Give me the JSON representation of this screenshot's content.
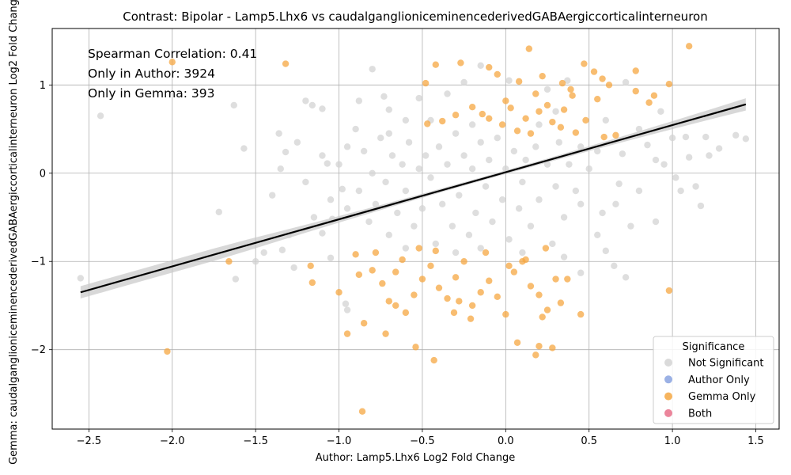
{
  "chart_data": {
    "type": "scatter",
    "title": "Contrast: Bipolar - Lamp5.Lhx6 vs caudalganglioniceminencederivedGABAergiccorticalinterneuron",
    "xlabel": "Author: Lamp5.Lhx6 Log2 Fold Change",
    "ylabel": "Gemma: caudalganglioniceminencederivedGABAergiccorticalinterneuron Log2 Fold Change",
    "xlim": [
      -2.72,
      1.64
    ],
    "ylim": [
      -2.9,
      1.64
    ],
    "x_ticks": [
      -2.5,
      -2.0,
      -1.5,
      -1.0,
      -0.5,
      0.0,
      0.5,
      1.0,
      1.5
    ],
    "x_tick_labels": [
      "−2.5",
      "−2.0",
      "−1.5",
      "−1.0",
      "−0.5",
      "0.0",
      "0.5",
      "1.0",
      "1.5"
    ],
    "y_ticks": [
      -2,
      -1,
      0,
      1
    ],
    "y_tick_labels": [
      "−2",
      "−1",
      "0",
      "1"
    ],
    "grid": true,
    "annotations": [
      "Spearman Correlation: 0.41",
      "Only in Author: 3924",
      "Only in Gemma: 393"
    ],
    "legend": {
      "title": "Significance",
      "placement": "lower-right",
      "entries": [
        {
          "name": "Not Significant",
          "color": "#d3d3d3"
        },
        {
          "name": "Author Only",
          "color": "#8aa3e0"
        },
        {
          "name": "Gemma Only",
          "color": "#f5a742"
        },
        {
          "name": "Both",
          "color": "#e8708a"
        }
      ]
    },
    "regression": {
      "x": [
        -2.55,
        1.44
      ],
      "y": [
        -1.35,
        0.78
      ],
      "color": "#000000"
    },
    "series": [
      {
        "name": "Gemma Only",
        "color": "#f5a742",
        "points": [
          [
            -2.0,
            1.26
          ],
          [
            -1.32,
            1.24
          ],
          [
            -0.42,
            1.23
          ],
          [
            -0.27,
            1.25
          ],
          [
            -0.1,
            1.2
          ],
          [
            0.14,
            1.41
          ],
          [
            0.47,
            1.24
          ],
          [
            1.1,
            1.44
          ],
          [
            0.78,
            1.16
          ],
          [
            0.53,
            1.15
          ],
          [
            0.58,
            1.07
          ],
          [
            0.98,
            1.01
          ],
          [
            0.34,
            1.02
          ],
          [
            0.62,
            1.0
          ],
          [
            -0.48,
            1.02
          ],
          [
            -0.05,
            1.12
          ],
          [
            0.22,
            1.1
          ],
          [
            0.08,
            1.04
          ],
          [
            0.39,
            0.95
          ],
          [
            0.55,
            0.84
          ],
          [
            0.86,
            0.8
          ],
          [
            0.89,
            0.88
          ],
          [
            0.78,
            0.93
          ],
          [
            -0.2,
            0.75
          ],
          [
            -0.14,
            0.67
          ],
          [
            -0.3,
            0.66
          ],
          [
            -0.47,
            0.56
          ],
          [
            -0.38,
            0.59
          ],
          [
            0.0,
            0.82
          ],
          [
            0.03,
            0.74
          ],
          [
            0.12,
            0.62
          ],
          [
            0.2,
            0.7
          ],
          [
            0.28,
            0.58
          ],
          [
            0.33,
            0.52
          ],
          [
            0.42,
            0.46
          ],
          [
            0.59,
            0.41
          ],
          [
            0.66,
            0.43
          ],
          [
            0.48,
            0.6
          ],
          [
            0.25,
            0.77
          ],
          [
            0.4,
            0.88
          ],
          [
            -0.02,
            0.55
          ],
          [
            0.07,
            0.48
          ],
          [
            0.15,
            0.45
          ],
          [
            -0.1,
            0.62
          ],
          [
            0.35,
            0.72
          ],
          [
            0.18,
            0.9
          ],
          [
            -2.03,
            -2.02
          ],
          [
            -0.86,
            -2.7
          ],
          [
            -0.43,
            -2.12
          ],
          [
            -1.66,
            -1.0
          ],
          [
            -1.17,
            -1.05
          ],
          [
            -1.16,
            -1.24
          ],
          [
            -1.0,
            -1.35
          ],
          [
            -0.95,
            -1.82
          ],
          [
            -0.85,
            -1.7
          ],
          [
            -0.72,
            -1.82
          ],
          [
            -0.54,
            -1.97
          ],
          [
            -0.31,
            -1.58
          ],
          [
            -0.21,
            -1.65
          ],
          [
            0.07,
            -1.92
          ],
          [
            0.2,
            -1.96
          ],
          [
            0.28,
            -1.98
          ],
          [
            0.18,
            -2.06
          ],
          [
            0.45,
            -1.6
          ],
          [
            0.98,
            -1.33
          ],
          [
            -0.9,
            -0.92
          ],
          [
            -0.88,
            -1.15
          ],
          [
            -0.8,
            -1.1
          ],
          [
            -0.74,
            -1.25
          ],
          [
            -0.7,
            -1.45
          ],
          [
            -0.66,
            -1.5
          ],
          [
            -0.6,
            -1.58
          ],
          [
            -0.55,
            -1.38
          ],
          [
            -0.5,
            -1.2
          ],
          [
            -0.45,
            -1.05
          ],
          [
            -0.4,
            -1.3
          ],
          [
            -0.35,
            -1.42
          ],
          [
            -0.3,
            -1.18
          ],
          [
            -0.25,
            -1.0
          ],
          [
            -0.2,
            -1.5
          ],
          [
            -0.15,
            -1.35
          ],
          [
            -0.1,
            -1.22
          ],
          [
            -0.05,
            -1.4
          ],
          [
            0.0,
            -1.6
          ],
          [
            0.05,
            -1.12
          ],
          [
            0.1,
            -1.0
          ],
          [
            0.15,
            -1.28
          ],
          [
            0.2,
            -1.38
          ],
          [
            0.25,
            -1.55
          ],
          [
            0.3,
            -1.2
          ],
          [
            0.33,
            -1.47
          ],
          [
            0.37,
            -1.2
          ],
          [
            0.22,
            -1.63
          ],
          [
            0.12,
            -0.98
          ],
          [
            -0.52,
            -0.85
          ],
          [
            -0.62,
            -0.98
          ],
          [
            -0.78,
            -0.9
          ],
          [
            -0.66,
            -1.12
          ],
          [
            -0.28,
            -1.45
          ],
          [
            0.02,
            -1.05
          ],
          [
            -0.12,
            -0.9
          ],
          [
            0.24,
            -0.85
          ],
          [
            -0.42,
            -0.88
          ]
        ]
      },
      {
        "name": "Not Significant",
        "color": "#d3d3d3",
        "points": [
          [
            -2.55,
            -1.19
          ],
          [
            -2.43,
            0.65
          ],
          [
            -1.63,
            0.77
          ],
          [
            -1.57,
            0.28
          ],
          [
            -1.36,
            0.45
          ],
          [
            -1.32,
            0.24
          ],
          [
            -1.2,
            0.82
          ],
          [
            -1.16,
            0.77
          ],
          [
            -1.1,
            0.73
          ],
          [
            -1.07,
            0.11
          ],
          [
            -1.62,
            -1.2
          ],
          [
            -1.72,
            -0.44
          ],
          [
            -1.5,
            -1.0
          ],
          [
            -1.45,
            -0.9
          ],
          [
            -1.34,
            -0.87
          ],
          [
            -1.27,
            -1.07
          ],
          [
            -1.1,
            -0.68
          ],
          [
            -1.05,
            -0.96
          ],
          [
            -0.95,
            -1.55
          ],
          [
            -0.96,
            -1.48
          ],
          [
            -1.04,
            -0.52
          ],
          [
            -0.98,
            -0.18
          ],
          [
            -0.8,
            1.18
          ],
          [
            -0.73,
            0.87
          ],
          [
            -0.88,
            0.82
          ],
          [
            -0.7,
            0.72
          ],
          [
            -0.52,
            0.85
          ],
          [
            -0.35,
            0.9
          ],
          [
            -0.25,
            1.03
          ],
          [
            -0.15,
            1.22
          ],
          [
            0.02,
            1.05
          ],
          [
            0.25,
            0.95
          ],
          [
            0.37,
            1.05
          ],
          [
            0.72,
            1.03
          ],
          [
            0.93,
            0.7
          ],
          [
            1.0,
            0.4
          ],
          [
            1.08,
            0.41
          ],
          [
            1.2,
            0.41
          ],
          [
            1.28,
            0.28
          ],
          [
            1.38,
            0.43
          ],
          [
            1.44,
            0.39
          ],
          [
            1.14,
            -0.15
          ],
          [
            1.17,
            -0.37
          ],
          [
            1.05,
            -0.2
          ],
          [
            0.9,
            -0.55
          ],
          [
            0.75,
            -0.6
          ],
          [
            0.6,
            -0.88
          ],
          [
            0.45,
            -1.13
          ],
          [
            0.65,
            -1.05
          ],
          [
            0.72,
            -1.18
          ],
          [
            1.22,
            0.2
          ],
          [
            1.1,
            0.18
          ],
          [
            0.95,
            0.1
          ],
          [
            0.85,
            0.32
          ],
          [
            0.8,
            0.5
          ],
          [
            0.7,
            0.22
          ],
          [
            0.68,
            -0.12
          ],
          [
            0.66,
            -0.35
          ],
          [
            0.58,
            -0.45
          ],
          [
            0.55,
            -0.7
          ],
          [
            0.5,
            0.05
          ],
          [
            0.45,
            0.3
          ],
          [
            0.42,
            -0.2
          ],
          [
            0.38,
            0.1
          ],
          [
            0.35,
            -0.5
          ],
          [
            0.32,
            0.35
          ],
          [
            0.3,
            -0.15
          ],
          [
            0.28,
            -0.8
          ],
          [
            0.25,
            0.1
          ],
          [
            0.2,
            -0.3
          ],
          [
            0.18,
            0.3
          ],
          [
            0.15,
            -0.6
          ],
          [
            0.12,
            0.15
          ],
          [
            0.1,
            -0.1
          ],
          [
            0.08,
            -0.4
          ],
          [
            0.05,
            0.25
          ],
          [
            0.02,
            -0.75
          ],
          [
            0.0,
            0.05
          ],
          [
            -0.02,
            -0.3
          ],
          [
            -0.05,
            0.4
          ],
          [
            -0.08,
            -0.55
          ],
          [
            -0.1,
            0.15
          ],
          [
            -0.12,
            -0.15
          ],
          [
            -0.15,
            0.35
          ],
          [
            -0.18,
            -0.45
          ],
          [
            -0.2,
            0.05
          ],
          [
            -0.22,
            -0.7
          ],
          [
            -0.25,
            0.2
          ],
          [
            -0.28,
            -0.25
          ],
          [
            -0.3,
            0.45
          ],
          [
            -0.32,
            -0.6
          ],
          [
            -0.35,
            0.1
          ],
          [
            -0.38,
            -0.35
          ],
          [
            -0.4,
            0.3
          ],
          [
            -0.42,
            -0.8
          ],
          [
            -0.45,
            -0.05
          ],
          [
            -0.48,
            0.2
          ],
          [
            -0.5,
            -0.4
          ],
          [
            -0.52,
            0.05
          ],
          [
            -0.55,
            -0.6
          ],
          [
            -0.58,
            0.35
          ],
          [
            -0.6,
            -0.2
          ],
          [
            -0.62,
            0.1
          ],
          [
            -0.65,
            -0.45
          ],
          [
            -0.68,
            0.2
          ],
          [
            -0.7,
            -0.7
          ],
          [
            -0.72,
            -0.1
          ],
          [
            -0.75,
            0.4
          ],
          [
            -0.78,
            -0.35
          ],
          [
            -0.8,
            0.0
          ],
          [
            -0.82,
            -0.55
          ],
          [
            -0.85,
            0.25
          ],
          [
            -0.88,
            -0.2
          ],
          [
            -0.9,
            0.5
          ],
          [
            -0.95,
            -0.4
          ],
          [
            -1.0,
            0.1
          ],
          [
            -1.05,
            -0.3
          ],
          [
            -1.1,
            0.2
          ],
          [
            -1.15,
            -0.5
          ],
          [
            -1.2,
            -0.1
          ],
          [
            -1.25,
            0.35
          ],
          [
            -1.3,
            -0.7
          ],
          [
            -1.4,
            -0.25
          ],
          [
            -1.35,
            0.05
          ],
          [
            -0.6,
            0.6
          ],
          [
            -0.45,
            0.6
          ],
          [
            0.6,
            0.6
          ],
          [
            0.3,
            0.7
          ],
          [
            -0.15,
            -0.85
          ],
          [
            0.1,
            -0.9
          ],
          [
            0.35,
            -0.95
          ],
          [
            -0.3,
            -0.9
          ],
          [
            -0.6,
            -0.85
          ],
          [
            0.45,
            -0.35
          ],
          [
            0.55,
            0.25
          ],
          [
            -0.7,
            0.45
          ],
          [
            -0.2,
            0.55
          ],
          [
            0.2,
            0.55
          ],
          [
            -0.95,
            0.3
          ],
          [
            0.8,
            -0.2
          ],
          [
            0.9,
            0.15
          ],
          [
            1.02,
            -0.05
          ]
        ]
      }
    ]
  }
}
